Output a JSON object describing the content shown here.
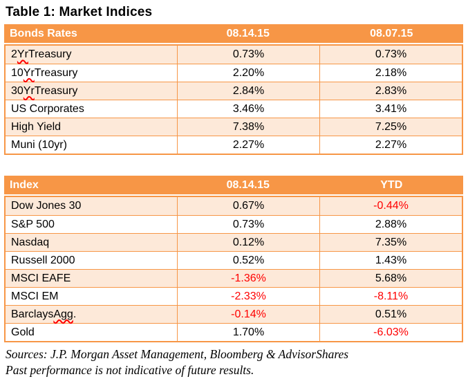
{
  "title": "Table 1: Market Indices",
  "colors": {
    "header_bg": "#F79646",
    "alt_row_bg": "#FDE9D9",
    "grid_border": "#F79646",
    "header_text": "#FFFFFF",
    "negative_value": "#FF0000",
    "squiggle": "#FF0000"
  },
  "tables": [
    {
      "name": "bonds-rates",
      "header": [
        "Bonds Rates",
        "08.14.15",
        "08.07.15"
      ],
      "rows": [
        {
          "label": "2 Yr Treasury",
          "misspelled": "Yr",
          "values": [
            "0.73%",
            "0.73%"
          ]
        },
        {
          "label": "10 Yr Treasury",
          "misspelled": "Yr",
          "values": [
            "2.20%",
            "2.18%"
          ]
        },
        {
          "label": "30 Yr Treasury",
          "misspelled": "Yr",
          "values": [
            "2.84%",
            "2.83%"
          ]
        },
        {
          "label": "US Corporates",
          "misspelled": "",
          "values": [
            "3.46%",
            "3.41%"
          ]
        },
        {
          "label": "High Yield",
          "misspelled": "",
          "values": [
            "7.38%",
            "7.25%"
          ]
        },
        {
          "label": "Muni (10yr)",
          "misspelled": "",
          "values": [
            "2.27%",
            "2.27%"
          ]
        }
      ]
    },
    {
      "name": "index",
      "header": [
        "Index",
        "08.14.15",
        "YTD"
      ],
      "rows": [
        {
          "label": "Dow Jones 30",
          "misspelled": "",
          "values": [
            "0.67%",
            "-0.44%"
          ]
        },
        {
          "label": "S&P 500",
          "misspelled": "",
          "values": [
            "0.73%",
            "2.88%"
          ]
        },
        {
          "label": "Nasdaq",
          "misspelled": "",
          "values": [
            "0.12%",
            "7.35%"
          ]
        },
        {
          "label": "Russell 2000",
          "misspelled": "",
          "values": [
            "0.52%",
            "1.43%"
          ]
        },
        {
          "label": "MSCI EAFE",
          "misspelled": "",
          "values": [
            "-1.36%",
            "5.68%"
          ]
        },
        {
          "label": "MSCI EM",
          "misspelled": "",
          "values": [
            "-2.33%",
            "-8.11%"
          ]
        },
        {
          "label": "Barclays Agg.",
          "misspelled": "Agg",
          "values": [
            "-0.14%",
            "0.51%"
          ]
        },
        {
          "label": "Gold",
          "misspelled": "",
          "values": [
            "1.70%",
            "-6.03%"
          ]
        }
      ]
    }
  ],
  "footer": {
    "sources": "Sources: J.P. Morgan Asset Management, Bloomberg & AdvisorShares",
    "disclaimer": "Past performance is not indicative of future results."
  }
}
